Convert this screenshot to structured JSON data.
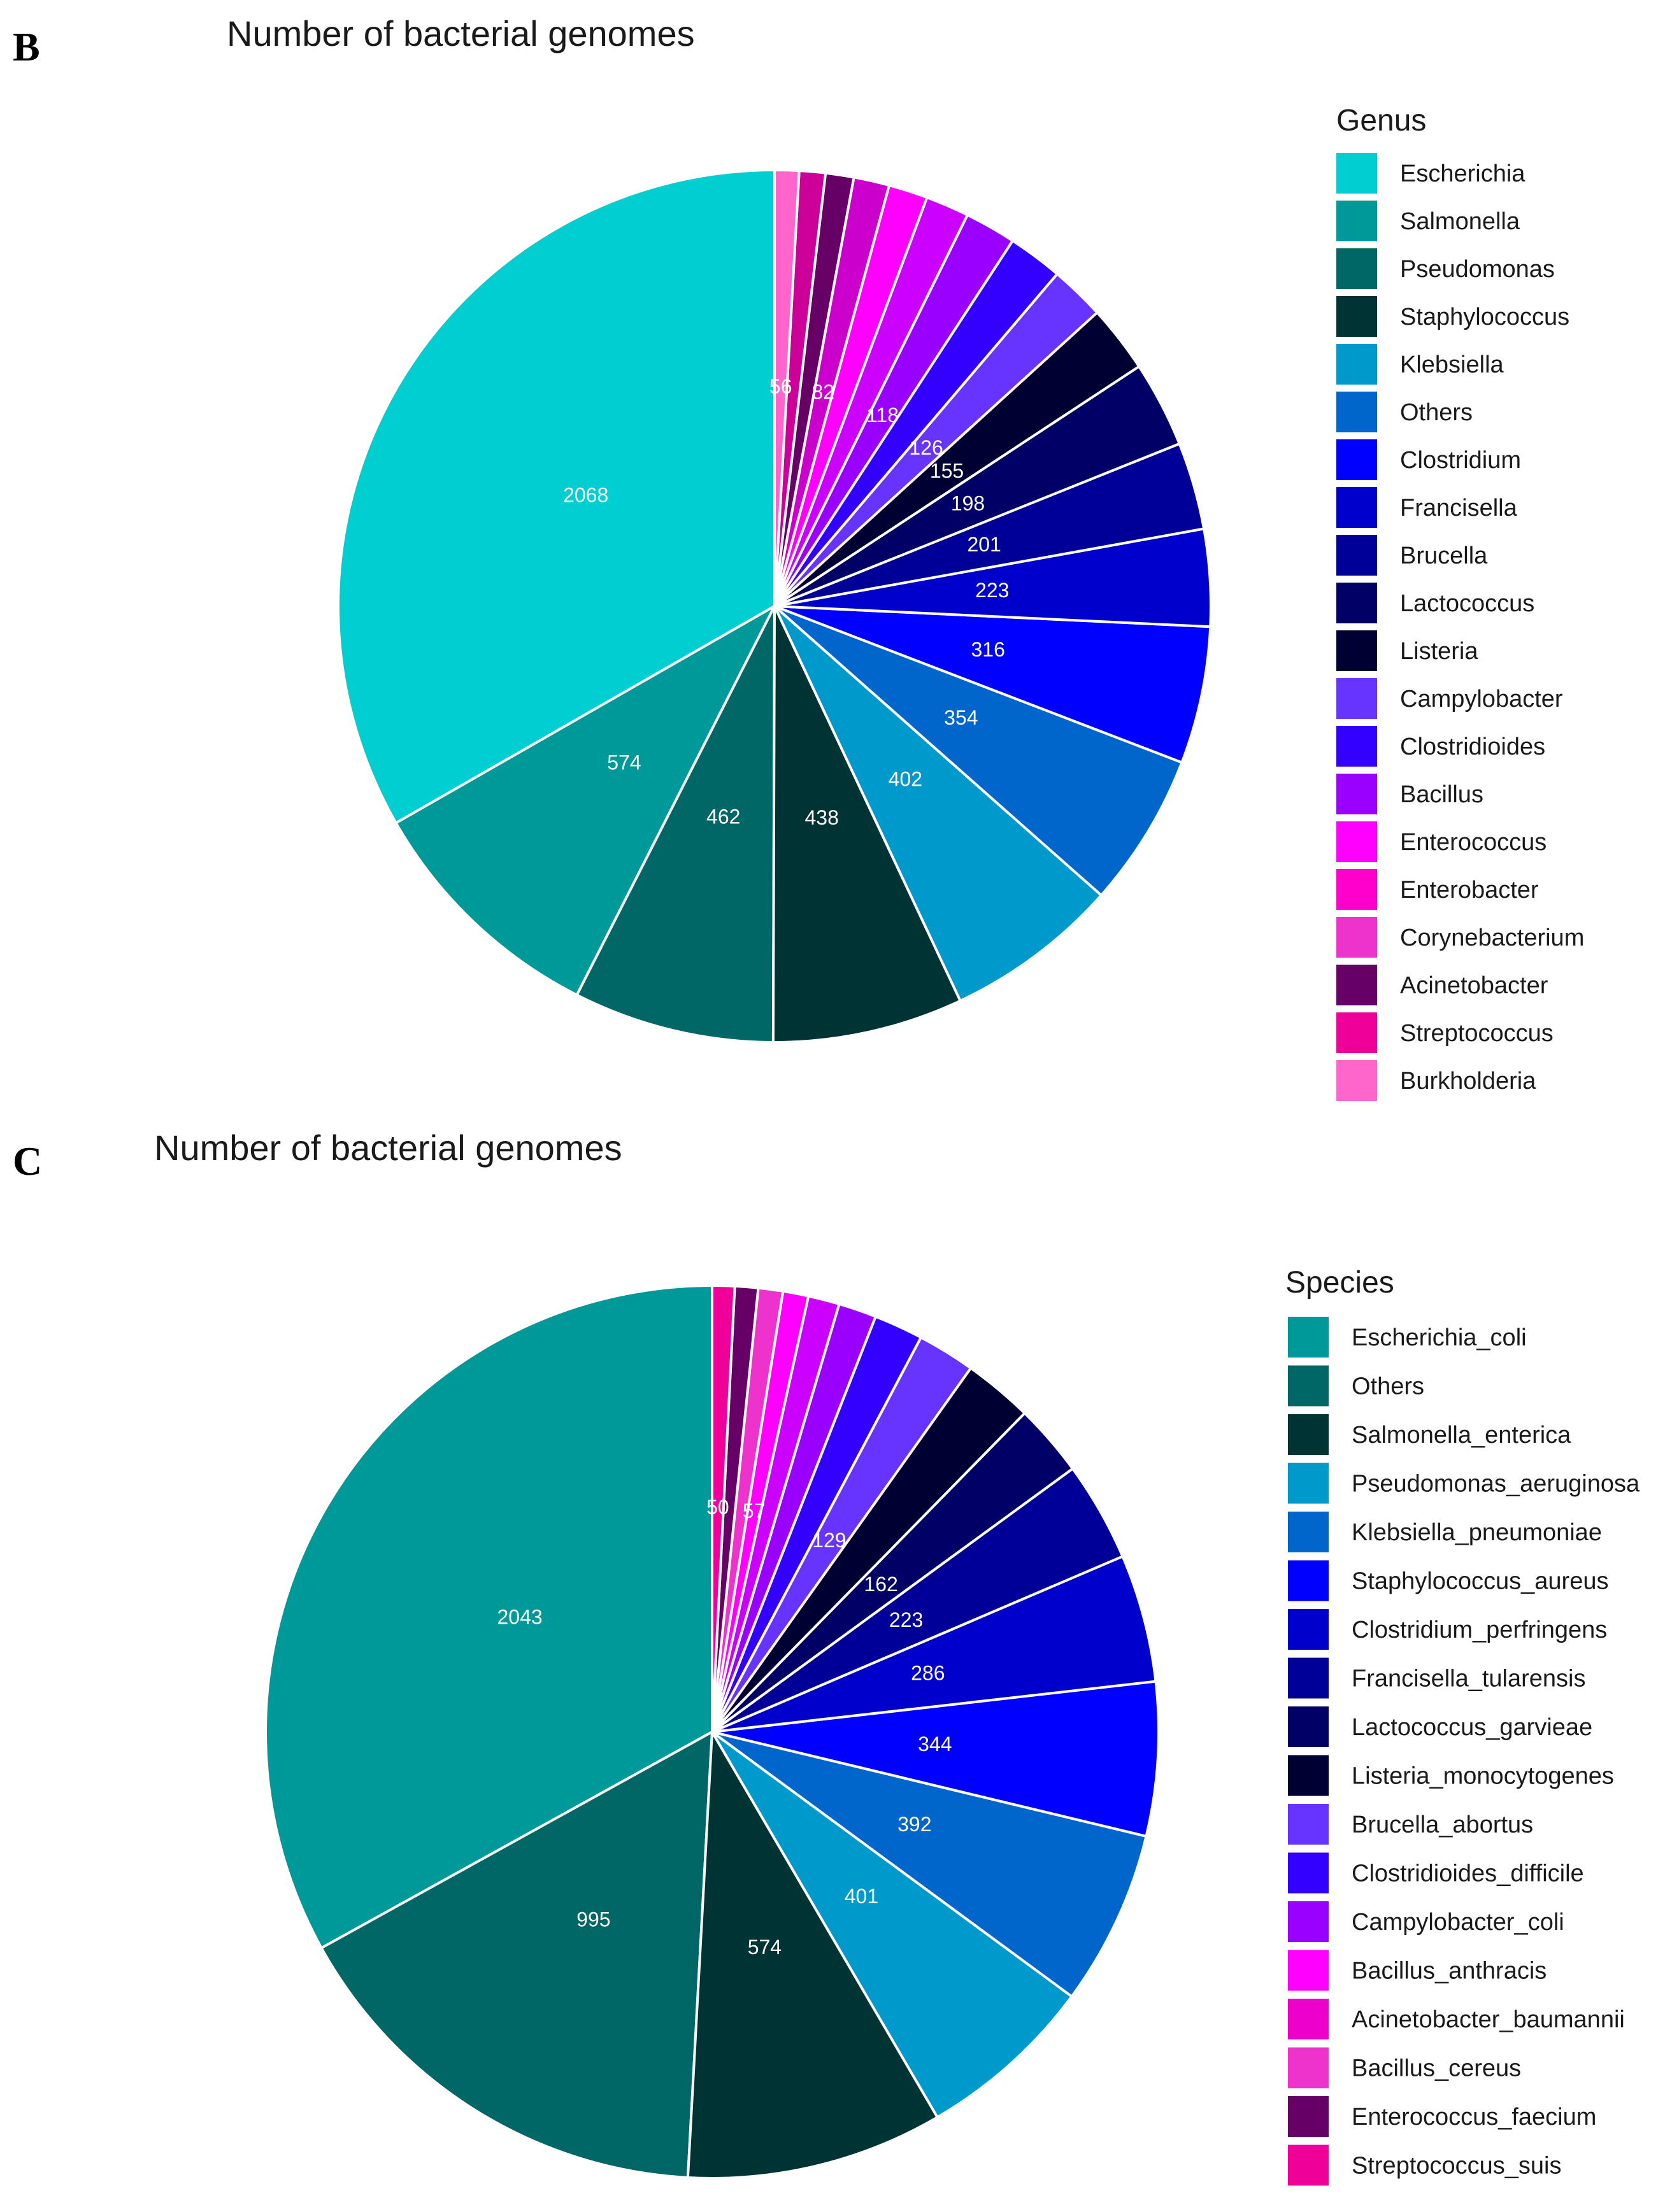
{
  "panels": [
    {
      "letter": "B",
      "title": "Number of bacterial genomes",
      "legend_title": "Genus"
    },
    {
      "letter": "C",
      "title": "Number of bacterial genomes",
      "legend_title": "Species"
    }
  ],
  "chart_data": [
    {
      "type": "pie",
      "title": "Number of bacterial genomes",
      "legend_title": "Genus",
      "slices": [
        {
          "name": "Escherichia",
          "value": 2068,
          "color": "#00CED1",
          "label": "2068"
        },
        {
          "name": "Salmonella",
          "value": 574,
          "color": "#009999",
          "label": "574"
        },
        {
          "name": "Pseudomonas",
          "value": 462,
          "color": "#006666",
          "label": "462"
        },
        {
          "name": "Staphylococcus",
          "value": 438,
          "color": "#003333",
          "label": "438"
        },
        {
          "name": "Klebsiella",
          "value": 402,
          "color": "#0099CC",
          "label": "402"
        },
        {
          "name": "Others",
          "value": 354,
          "color": "#0066CC",
          "label": "354"
        },
        {
          "name": "Clostridium",
          "value": 316,
          "color": "#0000FF",
          "label": "316"
        },
        {
          "name": "Francisella",
          "value": 223,
          "color": "#0000CC",
          "label": "223"
        },
        {
          "name": "Brucella",
          "value": 201,
          "color": "#000099",
          "label": "201"
        },
        {
          "name": "Lactococcus",
          "value": 198,
          "color": "#000066",
          "label": "198"
        },
        {
          "name": "Listeria",
          "value": 155,
          "color": "#000033",
          "label": "155"
        },
        {
          "name": "Campylobacter",
          "value": 126,
          "color": "#6633FF",
          "label": "126"
        },
        {
          "name": "Clostridioides",
          "value": 126,
          "color": "#3300FF",
          "label": ""
        },
        {
          "name": "Bacillus",
          "value": 118,
          "color": "#9900FF",
          "label": "118"
        },
        {
          "name": "Enterococcus",
          "value": 100,
          "color": "#CC00FF",
          "label": ""
        },
        {
          "name": "Enterobacter",
          "value": 90,
          "color": "#FF00FF",
          "label": ""
        },
        {
          "name": "Corynebacterium",
          "value": 82,
          "color": "#CC00CC",
          "label": "82"
        },
        {
          "name": "Acinetobacter",
          "value": 65,
          "color": "#660066",
          "label": ""
        },
        {
          "name": "Streptococcus",
          "value": 60,
          "color": "#CC0099",
          "label": ""
        },
        {
          "name": "Burkholderia",
          "value": 56,
          "color": "#FF66CC",
          "label": "56"
        }
      ],
      "legend": [
        {
          "name": "Escherichia",
          "color": "#00CED1"
        },
        {
          "name": "Salmonella",
          "color": "#009999"
        },
        {
          "name": "Pseudomonas",
          "color": "#006666"
        },
        {
          "name": "Staphylococcus",
          "color": "#003333"
        },
        {
          "name": "Klebsiella",
          "color": "#0099CC"
        },
        {
          "name": "Others",
          "color": "#0066CC"
        },
        {
          "name": "Clostridium",
          "color": "#0000FF"
        },
        {
          "name": "Francisella",
          "color": "#0000CC"
        },
        {
          "name": "Brucella",
          "color": "#000099"
        },
        {
          "name": "Lactococcus",
          "color": "#000066"
        },
        {
          "name": "Listeria",
          "color": "#000033"
        },
        {
          "name": "Campylobacter",
          "color": "#6633FF"
        },
        {
          "name": "Clostridioides",
          "color": "#3300FF"
        },
        {
          "name": "Bacillus",
          "color": "#9900FF"
        },
        {
          "name": "Enterococcus",
          "color": "#FF00FF"
        },
        {
          "name": "Enterobacter",
          "color": "#FF00CC"
        },
        {
          "name": "Corynebacterium",
          "color": "#EE33CC"
        },
        {
          "name": "Acinetobacter",
          "color": "#660066"
        },
        {
          "name": "Streptococcus",
          "color": "#EE0099"
        },
        {
          "name": "Burkholderia",
          "color": "#FF66CC"
        }
      ]
    },
    {
      "type": "pie",
      "title": "Number of bacterial genomes",
      "legend_title": "Species",
      "slices": [
        {
          "name": "Escherichia_coli",
          "value": 2043,
          "color": "#009999",
          "label": "2043"
        },
        {
          "name": "Others",
          "value": 995,
          "color": "#006666",
          "label": "995"
        },
        {
          "name": "Salmonella_enterica",
          "value": 574,
          "color": "#003333",
          "label": "574"
        },
        {
          "name": "Pseudomonas_aeruginosa",
          "value": 401,
          "color": "#0099CC",
          "label": "401"
        },
        {
          "name": "Klebsiella_pneumoniae",
          "value": 392,
          "color": "#0066CC",
          "label": "392"
        },
        {
          "name": "Staphylococcus_aureus",
          "value": 344,
          "color": "#0000FF",
          "label": "344"
        },
        {
          "name": "Clostridium_perfringens",
          "value": 286,
          "color": "#0000CC",
          "label": "286"
        },
        {
          "name": "Francisella_tularensis",
          "value": 223,
          "color": "#000099",
          "label": "223"
        },
        {
          "name": "Lactococcus_garvieae",
          "value": 162,
          "color": "#000066",
          "label": "162"
        },
        {
          "name": "Listeria_monocytogenes",
          "value": 155,
          "color": "#000033",
          "label": ""
        },
        {
          "name": "Brucella_abortus",
          "value": 129,
          "color": "#6633FF",
          "label": "129"
        },
        {
          "name": "Clostridioides_difficile",
          "value": 110,
          "color": "#3300FF",
          "label": ""
        },
        {
          "name": "Campylobacter_coli",
          "value": 85,
          "color": "#9900FF",
          "label": ""
        },
        {
          "name": "Bacillus_anthracis",
          "value": 70,
          "color": "#CC00FF",
          "label": ""
        },
        {
          "name": "Acinetobacter_baumannii",
          "value": 57,
          "color": "#FF00FF",
          "label": "57"
        },
        {
          "name": "Bacillus_cereus",
          "value": 55,
          "color": "#EE33CC",
          "label": ""
        },
        {
          "name": "Enterococcus_faecium",
          "value": 52,
          "color": "#660066",
          "label": ""
        },
        {
          "name": "Streptococcus_suis",
          "value": 50,
          "color": "#EE0099",
          "label": "50"
        }
      ],
      "legend": [
        {
          "name": "Escherichia_coli",
          "color": "#009999"
        },
        {
          "name": "Others",
          "color": "#006666"
        },
        {
          "name": "Salmonella_enterica",
          "color": "#003333"
        },
        {
          "name": "Pseudomonas_aeruginosa",
          "color": "#0099CC"
        },
        {
          "name": "Klebsiella_pneumoniae",
          "color": "#0066CC"
        },
        {
          "name": "Staphylococcus_aureus",
          "color": "#0000FF"
        },
        {
          "name": "Clostridium_perfringens",
          "color": "#0000CC"
        },
        {
          "name": "Francisella_tularensis",
          "color": "#000099"
        },
        {
          "name": "Lactococcus_garvieae",
          "color": "#000066"
        },
        {
          "name": "Listeria_monocytogenes",
          "color": "#000033"
        },
        {
          "name": "Brucella_abortus",
          "color": "#6633FF"
        },
        {
          "name": "Clostridioides_difficile",
          "color": "#3300FF"
        },
        {
          "name": "Campylobacter_coli",
          "color": "#9900FF"
        },
        {
          "name": "Bacillus_anthracis",
          "color": "#FF00FF"
        },
        {
          "name": "Acinetobacter_baumannii",
          "color": "#EE00CC"
        },
        {
          "name": "Bacillus_cereus",
          "color": "#EE33CC"
        },
        {
          "name": "Enterococcus_faecium",
          "color": "#660066"
        },
        {
          "name": "Streptococcus_suis",
          "color": "#EE0099"
        }
      ]
    }
  ]
}
